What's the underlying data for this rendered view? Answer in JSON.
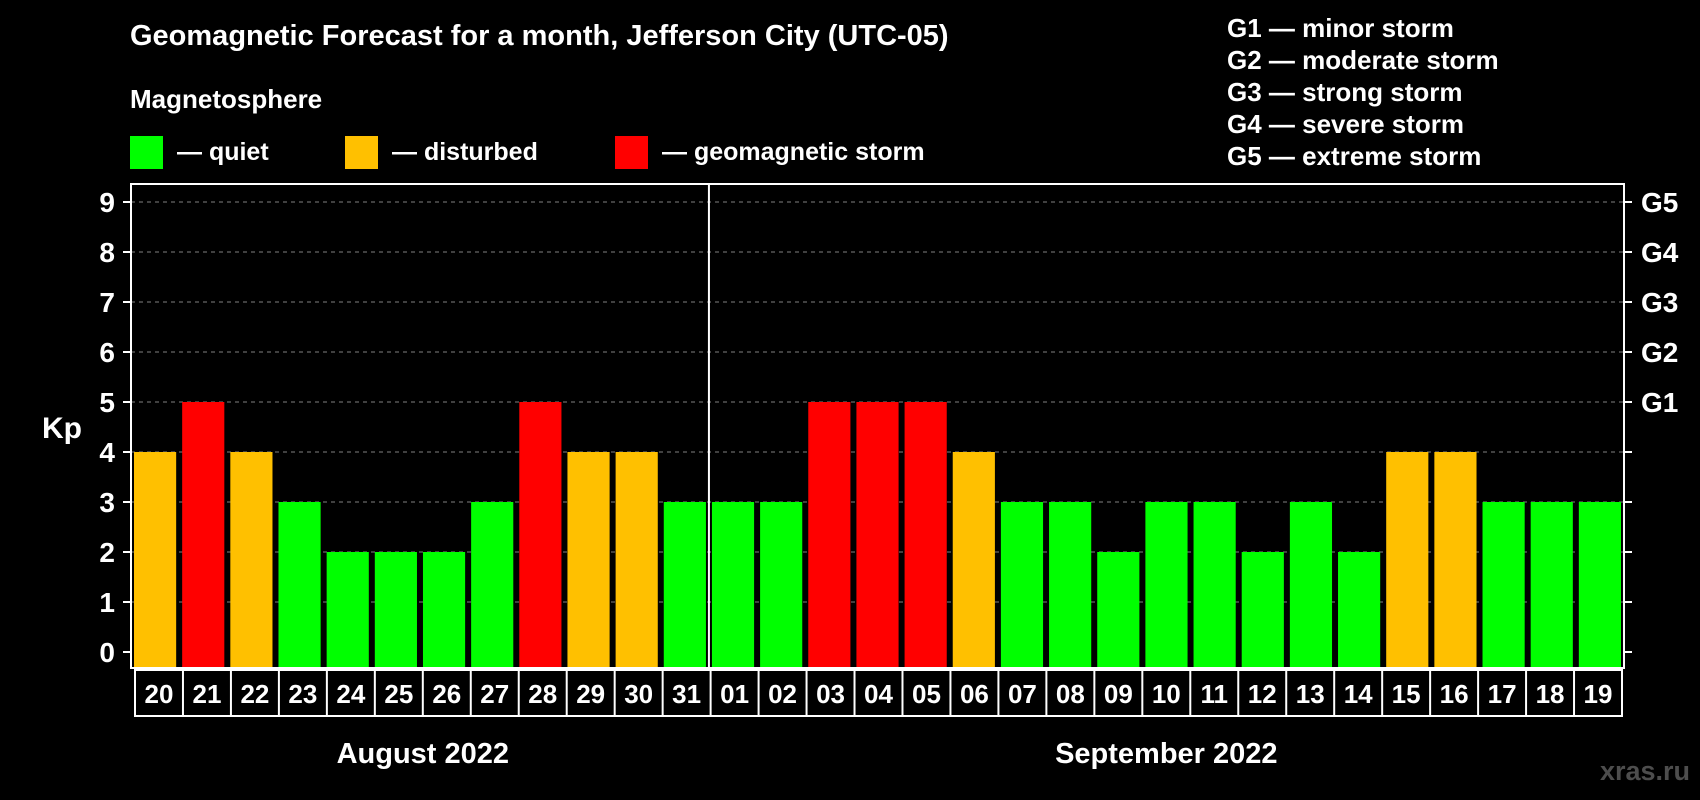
{
  "title": "Geomagnetic Forecast for a month, Jefferson City (UTC-05)",
  "subtitle": "Magnetosphere",
  "legend": [
    {
      "label": "— quiet",
      "color": "#00ff00"
    },
    {
      "label": "— disturbed",
      "color": "#ffc000"
    },
    {
      "label": "— geomagnetic storm",
      "color": "#ff0000"
    }
  ],
  "g_scale": [
    "G1 — minor storm",
    "G2 — moderate storm",
    "G3 — strong storm",
    "G4 — severe storm",
    "G5 — extreme storm"
  ],
  "watermark": "xras.ru",
  "colors": {
    "quiet": "#00ff00",
    "disturbed": "#ffc000",
    "storm": "#ff0000",
    "background": "#000000",
    "grid": "#808080"
  },
  "chart_data": {
    "type": "bar",
    "ylabel": "Kp",
    "ylim": [
      0,
      9
    ],
    "yticks": [
      0,
      1,
      2,
      3,
      4,
      5,
      6,
      7,
      8,
      9
    ],
    "right_ticks": [
      {
        "kp": 5,
        "label": "G1"
      },
      {
        "kp": 6,
        "label": "G2"
      },
      {
        "kp": 7,
        "label": "G3"
      },
      {
        "kp": 8,
        "label": "G4"
      },
      {
        "kp": 9,
        "label": "G5"
      }
    ],
    "grid": true,
    "categories": [
      "20",
      "21",
      "22",
      "23",
      "24",
      "25",
      "26",
      "27",
      "28",
      "29",
      "30",
      "31",
      "01",
      "02",
      "03",
      "04",
      "05",
      "06",
      "07",
      "08",
      "09",
      "10",
      "11",
      "12",
      "13",
      "14",
      "15",
      "16",
      "17",
      "18",
      "19"
    ],
    "values": [
      4,
      5,
      4,
      3,
      2,
      2,
      2,
      3,
      5,
      4,
      4,
      3,
      3,
      3,
      5,
      5,
      5,
      4,
      3,
      3,
      2,
      3,
      3,
      2,
      3,
      2,
      4,
      4,
      3,
      3,
      3
    ],
    "months": [
      {
        "label": "August 2022",
        "start": 0,
        "count": 12
      },
      {
        "label": "September 2022",
        "start": 12,
        "count": 19
      }
    ]
  }
}
